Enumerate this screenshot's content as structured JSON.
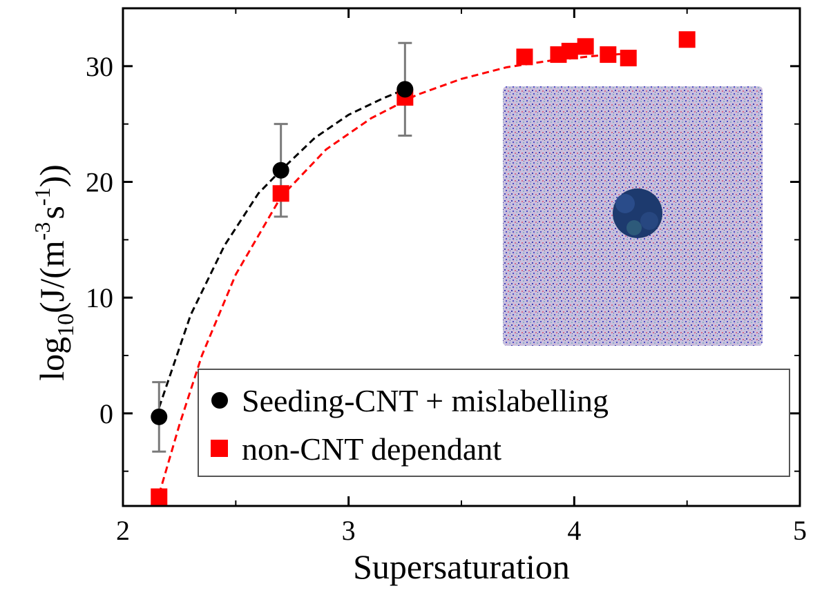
{
  "chart_data": {
    "type": "scatter",
    "xlabel": "Supersaturation",
    "ylabel_parts": {
      "log": "log",
      "log_sub": "10",
      "open": "(J/(m",
      "m_sup": "-3",
      "s": "s",
      "s_sup": "-1",
      "close": "))"
    },
    "xlim": [
      2,
      5
    ],
    "ylim": [
      -8,
      35
    ],
    "xticks": [
      2,
      3,
      4,
      5
    ],
    "yticks": [
      0,
      10,
      20,
      30
    ],
    "xtick_labels": [
      "2",
      "3",
      "4",
      "5"
    ],
    "ytick_labels": [
      "0",
      "10",
      "20",
      "30"
    ],
    "grid": false,
    "legend_position": "bottom-right",
    "series": [
      {
        "name": "Seeding-CNT + mislabelling",
        "marker": "circle",
        "color": "#000000",
        "x": [
          2.16,
          2.7,
          3.25
        ],
        "y": [
          -0.3,
          21,
          28
        ],
        "err": [
          3,
          4,
          4
        ],
        "fit_x": [
          2.16,
          2.3,
          2.45,
          2.6,
          2.7,
          2.85,
          3.0,
          3.15,
          3.25
        ],
        "fit_y": [
          0.5,
          8.5,
          14.5,
          19,
          21,
          23.8,
          25.8,
          27.2,
          28
        ]
      },
      {
        "name": "non-CNT dependant",
        "marker": "square",
        "color": "#ff0000",
        "x": [
          2.16,
          2.7,
          3.25,
          3.78,
          3.93,
          3.98,
          4.05,
          4.15,
          4.24,
          4.5
        ],
        "y": [
          -7.2,
          19,
          27.3,
          30.8,
          31,
          31.3,
          31.7,
          31,
          30.7,
          32.3
        ],
        "fit_x": [
          2.16,
          2.25,
          2.35,
          2.5,
          2.7,
          2.9,
          3.1,
          3.3,
          3.5,
          3.7,
          3.9,
          4.1,
          4.25
        ],
        "fit_y": [
          -7,
          -1,
          5,
          12,
          18.7,
          22.8,
          25.5,
          27.5,
          28.9,
          29.9,
          30.5,
          30.9,
          31.1
        ]
      }
    ]
  }
}
